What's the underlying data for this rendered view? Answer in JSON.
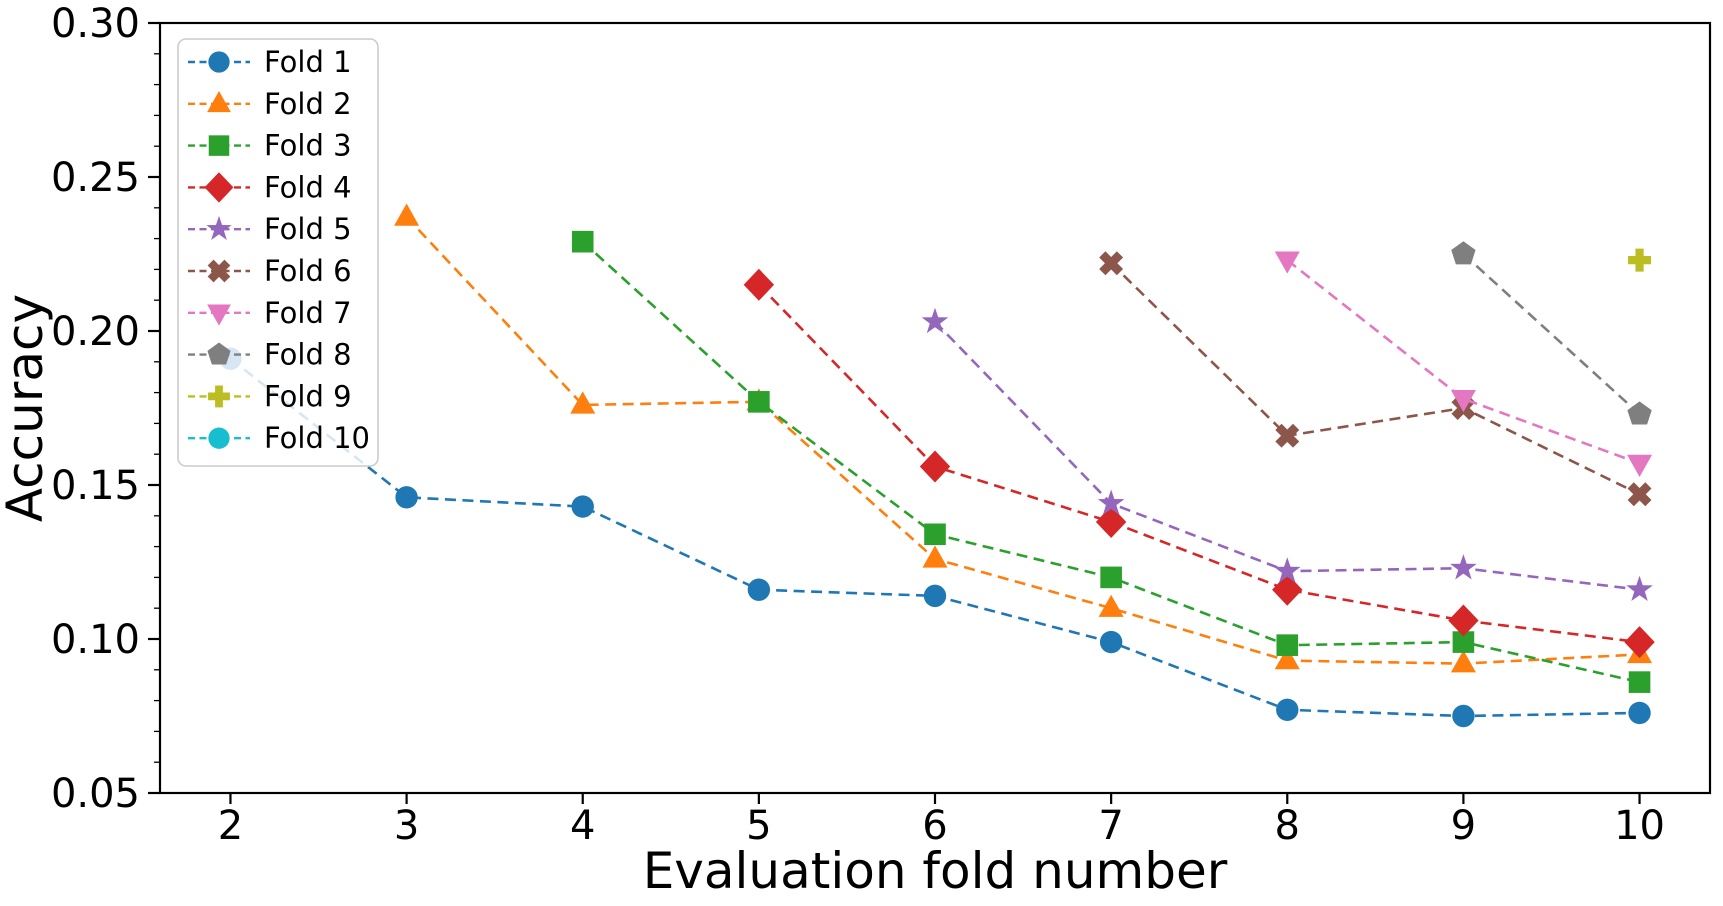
{
  "chart_data": {
    "type": "line",
    "title": "",
    "xlabel": "Evaluation fold number",
    "ylabel": "Accuracy",
    "xlim": [
      1.6,
      10.4
    ],
    "ylim": [
      0.05,
      0.3
    ],
    "x_ticks": [
      2,
      3,
      4,
      5,
      6,
      7,
      8,
      9,
      10
    ],
    "x_tick_labels": [
      "2",
      "3",
      "4",
      "5",
      "6",
      "7",
      "8",
      "9",
      "10"
    ],
    "y_ticks": [
      0.05,
      0.1,
      0.15,
      0.2,
      0.25,
      0.3
    ],
    "y_tick_labels": [
      "0.05",
      "0.10",
      "0.15",
      "0.20",
      "0.25",
      "0.30"
    ],
    "y_minor_tick_step": 0.01,
    "grid": false,
    "line_style": "dashed",
    "legend_position": "upper left",
    "series": [
      {
        "name": "Fold 1",
        "color": "#1f77b4",
        "marker": "circle",
        "x": [
          2,
          3,
          4,
          5,
          6,
          7,
          8,
          9,
          10
        ],
        "y": [
          0.191,
          0.146,
          0.143,
          0.116,
          0.114,
          0.099,
          0.077,
          0.075,
          0.076
        ]
      },
      {
        "name": "Fold 2",
        "color": "#ff7f0e",
        "marker": "triangle-up",
        "x": [
          3,
          4,
          5,
          6,
          7,
          8,
          9,
          10
        ],
        "y": [
          0.237,
          0.176,
          0.177,
          0.126,
          0.11,
          0.093,
          0.092,
          0.095
        ]
      },
      {
        "name": "Fold 3",
        "color": "#2ca02c",
        "marker": "square",
        "x": [
          4,
          5,
          6,
          7,
          8,
          9,
          10
        ],
        "y": [
          0.229,
          0.177,
          0.134,
          0.12,
          0.098,
          0.099,
          0.086
        ]
      },
      {
        "name": "Fold 4",
        "color": "#d62728",
        "marker": "diamond",
        "x": [
          5,
          6,
          7,
          8,
          9,
          10
        ],
        "y": [
          0.215,
          0.156,
          0.138,
          0.116,
          0.106,
          0.099
        ]
      },
      {
        "name": "Fold 5",
        "color": "#9467bd",
        "marker": "star",
        "x": [
          6,
          7,
          8,
          9,
          10
        ],
        "y": [
          0.203,
          0.144,
          0.122,
          0.123,
          0.116
        ]
      },
      {
        "name": "Fold 6",
        "color": "#8c564b",
        "marker": "x-filled",
        "x": [
          7,
          8,
          9,
          10
        ],
        "y": [
          0.222,
          0.166,
          0.175,
          0.147
        ]
      },
      {
        "name": "Fold 7",
        "color": "#e377c2",
        "marker": "triangle-down",
        "x": [
          8,
          9,
          10
        ],
        "y": [
          0.223,
          0.178,
          0.157
        ]
      },
      {
        "name": "Fold 8",
        "color": "#7f7f7f",
        "marker": "pentagon",
        "x": [
          9,
          10
        ],
        "y": [
          0.225,
          0.173
        ]
      },
      {
        "name": "Fold 9",
        "color": "#bcbd22",
        "marker": "plus-filled",
        "x": [
          10
        ],
        "y": [
          0.223
        ]
      },
      {
        "name": "Fold 10",
        "color": "#17becf",
        "marker": "circle",
        "x": [],
        "y": []
      }
    ]
  }
}
